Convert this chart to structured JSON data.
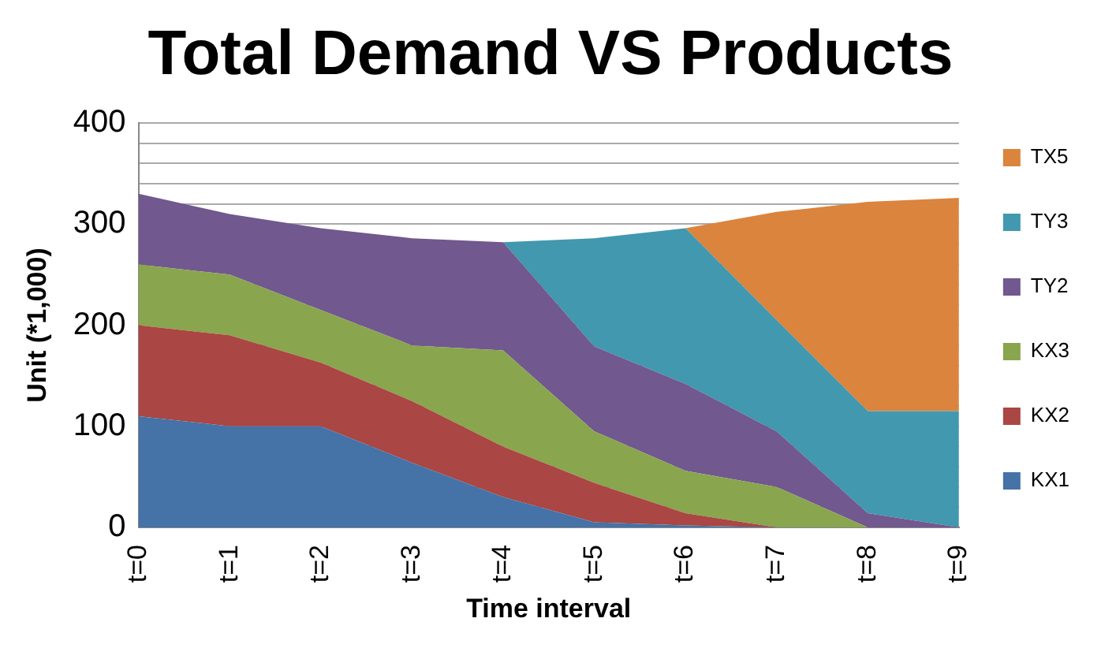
{
  "chart_data": {
    "type": "area",
    "title": "Total Demand VS Products",
    "xlabel": "Time interval",
    "ylabel": "Unit (*1,000)",
    "categories": [
      "t=0",
      "t=1",
      "t=2",
      "t=3",
      "t=4",
      "t=5",
      "t=6",
      "t=7",
      "t=8",
      "t=9"
    ],
    "stacked": true,
    "series": [
      {
        "name": "KX1",
        "color": "#4572a7",
        "values": [
          110,
          100,
          100,
          64,
          30,
          5,
          2,
          0,
          0,
          0
        ]
      },
      {
        "name": "KX2",
        "color": "#aa4643",
        "values": [
          90,
          90,
          63,
          61,
          50,
          39,
          12,
          0,
          0,
          0
        ]
      },
      {
        "name": "KX3",
        "color": "#89a54e",
        "values": [
          60,
          60,
          52,
          55,
          95,
          51,
          42,
          40,
          0,
          0
        ]
      },
      {
        "name": "TY2",
        "color": "#71588f",
        "values": [
          70,
          60,
          81,
          106,
          107,
          84,
          86,
          55,
          14,
          0
        ]
      },
      {
        "name": "TY3",
        "color": "#4198af",
        "values": [
          null,
          null,
          null,
          null,
          0,
          107,
          154,
          110,
          101,
          115
        ]
      },
      {
        "name": "TX5",
        "color": "#db843d",
        "values": [
          null,
          null,
          null,
          null,
          null,
          null,
          0,
          107,
          207,
          211
        ]
      }
    ],
    "ylim": [
      0,
      400
    ],
    "yticks": [
      0,
      {
        "value": 20,
        "label": null
      },
      {
        "value": 40,
        "label": null
      },
      {
        "value": 60,
        "label": null
      },
      {
        "value": 80,
        "label": null
      },
      100,
      {
        "value": 120,
        "label": null
      },
      {
        "value": 140,
        "label": null
      },
      {
        "value": 160,
        "label": null
      },
      {
        "value": 180,
        "label": null
      },
      200,
      {
        "value": 220,
        "label": null
      },
      {
        "value": 240,
        "label": null
      },
      {
        "value": 260,
        "label": null
      },
      {
        "value": 280,
        "label": null
      },
      300,
      {
        "value": 320,
        "label": null
      },
      {
        "value": 340,
        "label": null
      },
      {
        "value": 360,
        "label": null
      },
      {
        "value": 380,
        "label": null
      },
      400
    ],
    "grid": "y",
    "legend": "right"
  }
}
